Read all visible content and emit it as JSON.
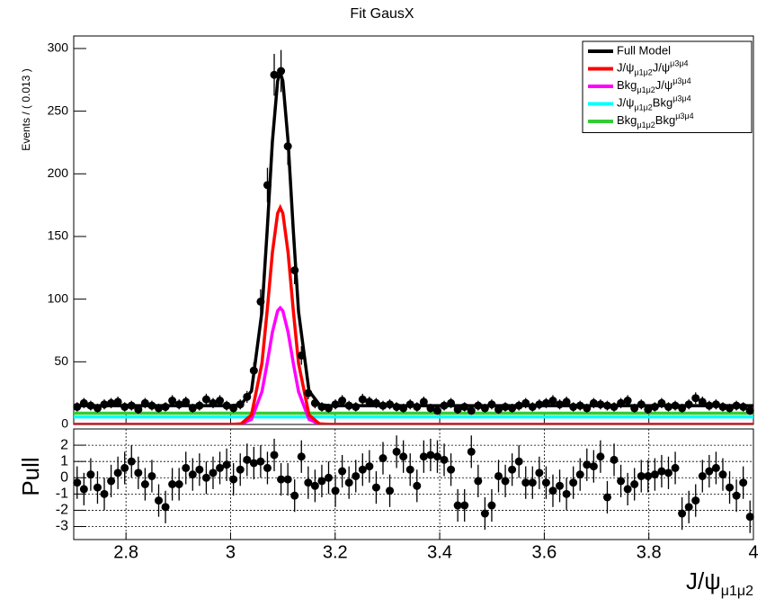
{
  "chart_data": {
    "type": "fit",
    "title": "Fit GausX",
    "y_label": "Events / ( 0.013 )",
    "x_label": [
      "J/ψ",
      "μ1μ2"
    ],
    "xlim": [
      2.7,
      4.0
    ],
    "xticks": [
      2.8,
      3,
      3.2,
      3.4,
      3.6,
      3.8,
      4
    ],
    "ylim": [
      0,
      310
    ],
    "yticks": [
      0,
      50,
      100,
      150,
      200,
      250,
      300
    ],
    "x": [
      2.7065,
      2.7195,
      2.7325,
      2.7455,
      2.7585,
      2.7715,
      2.7845,
      2.7975,
      2.8105,
      2.8235,
      2.8365,
      2.8495,
      2.8625,
      2.8755,
      2.8885,
      2.9015,
      2.9145,
      2.9275,
      2.9405,
      2.9535,
      2.9665,
      2.9795,
      2.9925,
      3.0055,
      3.0185,
      3.0315,
      3.0445,
      3.0575,
      3.0705,
      3.0835,
      3.0965,
      3.1095,
      3.1225,
      3.1355,
      3.1485,
      3.1615,
      3.1745,
      3.1875,
      3.2005,
      3.2135,
      3.2265,
      3.2395,
      3.2525,
      3.2655,
      3.2785,
      3.2915,
      3.3045,
      3.3175,
      3.3305,
      3.3435,
      3.3565,
      3.3695,
      3.3825,
      3.3955,
      3.4085,
      3.4215,
      3.4345,
      3.4475,
      3.4605,
      3.4735,
      3.4865,
      3.4995,
      3.5125,
      3.5255,
      3.5385,
      3.5515,
      3.5645,
      3.5775,
      3.5905,
      3.6035,
      3.6165,
      3.6295,
      3.6425,
      3.6555,
      3.6685,
      3.6815,
      3.6945,
      3.7075,
      3.7205,
      3.7335,
      3.7465,
      3.7595,
      3.7725,
      3.7855,
      3.7985,
      3.8115,
      3.8245,
      3.8375,
      3.8505,
      3.8635,
      3.8765,
      3.8895,
      3.9025,
      3.9155,
      3.9285,
      3.9415,
      3.9545,
      3.9675,
      3.9805,
      3.9935
    ],
    "values": [
      14,
      17,
      15,
      13,
      16,
      17,
      18,
      14,
      15,
      12,
      17,
      15,
      13,
      14,
      19,
      16,
      18,
      13,
      15,
      20,
      17,
      19,
      15,
      13,
      16,
      22,
      43,
      98,
      191,
      279,
      282,
      222,
      123,
      55,
      25,
      17,
      14,
      13,
      16,
      19,
      15,
      14,
      20,
      18,
      17,
      15,
      16,
      14,
      13,
      16,
      14,
      18,
      13,
      11,
      15,
      17,
      12,
      14,
      11,
      15,
      13,
      16,
      12,
      14,
      13,
      15,
      17,
      14,
      16,
      17,
      19,
      16,
      18,
      14,
      15,
      13,
      17,
      16,
      15,
      14,
      17,
      19,
      13,
      16,
      12,
      14,
      17,
      14,
      15,
      13,
      16,
      21,
      18,
      15,
      16,
      14,
      13,
      15,
      14,
      11
    ],
    "errors": [
      3.7,
      4.1,
      3.9,
      3.6,
      4,
      4.1,
      4.2,
      3.7,
      3.9,
      3.5,
      4.1,
      3.9,
      3.6,
      3.7,
      4.4,
      4,
      4.2,
      3.6,
      3.9,
      4.5,
      4.1,
      4.4,
      3.9,
      3.6,
      4,
      4.7,
      6.6,
      9.9,
      13.8,
      16.7,
      16.8,
      14.9,
      11.1,
      7.4,
      5,
      4.1,
      3.7,
      3.6,
      4,
      4.4,
      3.9,
      3.7,
      4.5,
      4.2,
      4.1,
      3.9,
      4,
      3.7,
      3.6,
      4,
      3.7,
      4.2,
      3.6,
      3.3,
      3.9,
      4.1,
      3.5,
      3.7,
      3.3,
      3.9,
      3.6,
      4,
      3.5,
      3.7,
      3.6,
      3.9,
      4.1,
      3.7,
      4,
      4.1,
      4.4,
      4,
      4.2,
      3.7,
      3.9,
      3.6,
      4.1,
      4,
      3.9,
      3.7,
      4.1,
      4.4,
      3.6,
      4,
      3.5,
      3.7,
      4.1,
      3.7,
      3.9,
      3.6,
      4,
      4.6,
      4.2,
      3.9,
      4,
      3.7,
      3.6,
      3.9,
      3.7,
      3.3
    ],
    "series": [
      {
        "name": "Full Model",
        "color": "#000000",
        "x": [
          2.7,
          2.98,
          3.0,
          3.02,
          3.04,
          3.06,
          3.07,
          3.08,
          3.09,
          3.095,
          3.1,
          3.11,
          3.12,
          3.13,
          3.15,
          3.17,
          3.19,
          3.21,
          4.0
        ],
        "values": [
          15,
          15,
          15,
          15.8,
          26.7,
          90,
          154.7,
          225.9,
          274.1,
          281,
          274.1,
          225.9,
          154.7,
          90,
          26.7,
          15.8,
          15,
          15,
          15
        ]
      },
      {
        "name": [
          "J/ψ",
          "μ1μ2",
          "J/ψ",
          "μ3μ4"
        ],
        "color": "#ff0000",
        "x": [
          2.7,
          2.98,
          3.0,
          3.02,
          3.04,
          3.06,
          3.07,
          3.08,
          3.09,
          3.095,
          3.1,
          3.11,
          3.12,
          3.13,
          3.15,
          3.17,
          3.19,
          3.21,
          4.0
        ],
        "values": [
          0,
          0,
          0,
          0.5,
          7.6,
          48.8,
          90.8,
          137.2,
          168.5,
          173,
          168.5,
          137.2,
          90.8,
          48.8,
          7.6,
          0.5,
          0,
          0,
          0
        ]
      },
      {
        "name": [
          "Bkg",
          "μ1μ2",
          "J/ψ",
          "μ3μ4"
        ],
        "color": "#ff00ff",
        "x": [
          2.7,
          2.98,
          3.0,
          3.02,
          3.04,
          3.06,
          3.07,
          3.08,
          3.09,
          3.095,
          3.1,
          3.11,
          3.12,
          3.13,
          3.15,
          3.17,
          3.19,
          3.21,
          4.0
        ],
        "values": [
          0,
          0,
          0,
          0.3,
          4.1,
          26.2,
          48.8,
          73.7,
          90.6,
          93,
          90.6,
          73.7,
          48.8,
          26.2,
          4.1,
          0.3,
          0,
          0,
          0
        ]
      },
      {
        "name": [
          "J/ψ",
          "μ1μ2",
          "Bkg",
          "μ3μ4"
        ],
        "color": "#00ffff",
        "x": [
          2.7,
          4.0
        ],
        "values": [
          6,
          6
        ]
      },
      {
        "name": [
          "Bkg",
          "μ1μ2",
          "Bkg",
          "μ3μ4"
        ],
        "color": "#33cc33",
        "x": [
          2.7,
          4.0
        ],
        "values": [
          9,
          9
        ]
      }
    ],
    "pull": {
      "y_label": "Pull",
      "ylim": [
        -3.8,
        3.0
      ],
      "yticks": [
        -3,
        -2,
        -1,
        0,
        1,
        2
      ],
      "grid": true,
      "error": 1,
      "values": [
        -0.3,
        -0.7,
        0.2,
        -0.6,
        -1.0,
        -0.2,
        0.3,
        0.6,
        1.0,
        0.3,
        -0.4,
        0.1,
        -1.4,
        -1.8,
        -0.4,
        -0.4,
        0.6,
        0.2,
        0.5,
        0,
        0.3,
        0.6,
        0.8,
        -0.1,
        0.5,
        1.1,
        0.9,
        1.0,
        0.6,
        1.4,
        -0.1,
        -0.1,
        -1.1,
        1.3,
        -0.3,
        -0.5,
        -0.2,
        0,
        -0.8,
        0.4,
        -0.3,
        0.1,
        0.5,
        0.7,
        -0.6,
        1.2,
        -0.8,
        1.6,
        1.3,
        0.5,
        -0.5,
        1.3,
        1.4,
        1.3,
        1.1,
        0.5,
        -1.7,
        -1.7,
        1.6,
        -0.2,
        -2.2,
        -1.7,
        0.1,
        -0.2,
        0.5,
        1.0,
        -0.3,
        -0.3,
        0.3,
        -0.3,
        -0.8,
        -0.5,
        -1.0,
        -0.3,
        0.2,
        0.8,
        0.7,
        1.3,
        -1.2,
        1.1,
        -0.2,
        -0.7,
        -0.4,
        0.1,
        0.1,
        0.2,
        0.4,
        0.3,
        0.6,
        -2.2,
        -1.8,
        -1.4,
        0.1,
        0.4,
        0.6,
        0.2,
        -0.6,
        -1.1,
        -0.3,
        -2.4
      ]
    }
  }
}
